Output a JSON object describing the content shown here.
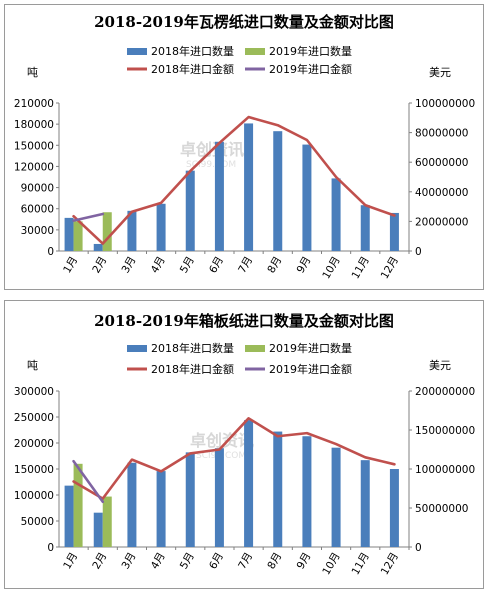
{
  "legend_labels": {
    "import_2018": "2018年进口数量",
    "import_2019": "2019年进口数量",
    "amount_2018": "2018年进口金额",
    "amount_2019": "2019年进口金额"
  },
  "colors": {
    "import_2018": "#4a7ebb",
    "import_2019": "#9bbb59",
    "amount_2018": "#c0504d",
    "amount_2019": "#8064a2"
  },
  "watermark": {
    "cn": "卓创资讯",
    "en": "SCI99.COM"
  },
  "chart_data": [
    {
      "type": "bar",
      "title": "2018-2019年瓦楞纸进口数量及金额对比图",
      "ylabel": "吨",
      "y2label": "美元",
      "categories": [
        "1月",
        "2月",
        "3月",
        "4月",
        "5月",
        "6月",
        "7月",
        "8月",
        "9月",
        "10月",
        "11月",
        "12月"
      ],
      "ylim": [
        0,
        210000
      ],
      "yticks": [
        "0",
        "30000",
        "60000",
        "90000",
        "120000",
        "150000",
        "180000",
        "210000"
      ],
      "y2lim": [
        0,
        100000000
      ],
      "y2ticks": [
        "0",
        "20000000",
        "40000000",
        "60000000",
        "80000000",
        "100000000"
      ],
      "series": [
        {
          "name": "2018年进口数量",
          "kind": "bar",
          "axis": "left",
          "values": [
            47000,
            10000,
            57000,
            67000,
            114000,
            155000,
            181000,
            170000,
            151000,
            103000,
            65000,
            54000
          ]
        },
        {
          "name": "2019年进口数量",
          "kind": "bar",
          "axis": "left",
          "values": [
            42000,
            55000,
            null,
            null,
            null,
            null,
            null,
            null,
            null,
            null,
            null,
            null
          ]
        },
        {
          "name": "2018年进口金额",
          "kind": "line",
          "axis": "right",
          "values": [
            23500000,
            5000000,
            26500000,
            32500000,
            54000000,
            73000000,
            90500000,
            85000000,
            75000000,
            50000000,
            31000000,
            24000000
          ]
        },
        {
          "name": "2019年进口金额",
          "kind": "line",
          "axis": "right",
          "values": [
            20500000,
            25000000,
            null,
            null,
            null,
            null,
            null,
            null,
            null,
            null,
            null,
            null
          ]
        }
      ]
    },
    {
      "type": "bar",
      "title": "2018-2019年箱板纸进口数量及金额对比图",
      "ylabel": "吨",
      "y2label": "美元",
      "categories": [
        "1月",
        "2月",
        "3月",
        "4月",
        "5月",
        "6月",
        "7月",
        "8月",
        "9月",
        "10月",
        "11月",
        "12月"
      ],
      "ylim": [
        0,
        300000
      ],
      "yticks": [
        "0",
        "50000",
        "100000",
        "150000",
        "200000",
        "250000",
        "300000"
      ],
      "y2lim": [
        0,
        200000000
      ],
      "y2ticks": [
        "0",
        "50000000",
        "100000000",
        "150000000",
        "200000000"
      ],
      "series": [
        {
          "name": "2018年进口数量",
          "kind": "bar",
          "axis": "left",
          "values": [
            118000,
            66000,
            162000,
            146000,
            182000,
            190000,
            244000,
            222000,
            213000,
            191000,
            167000,
            150000
          ]
        },
        {
          "name": "2019年进口数量",
          "kind": "bar",
          "axis": "left",
          "values": [
            160000,
            97000,
            null,
            null,
            null,
            null,
            null,
            null,
            null,
            null,
            null,
            null
          ]
        },
        {
          "name": "2018年进口金额",
          "kind": "line",
          "axis": "right",
          "values": [
            84000000,
            62000000,
            112000000,
            97000000,
            120000000,
            125000000,
            165000000,
            142000000,
            146000000,
            132000000,
            115000000,
            106000000
          ]
        },
        {
          "name": "2019年进口金额",
          "kind": "line",
          "axis": "right",
          "values": [
            110000000,
            58000000,
            null,
            null,
            null,
            null,
            null,
            null,
            null,
            null,
            null,
            null
          ]
        }
      ]
    }
  ]
}
